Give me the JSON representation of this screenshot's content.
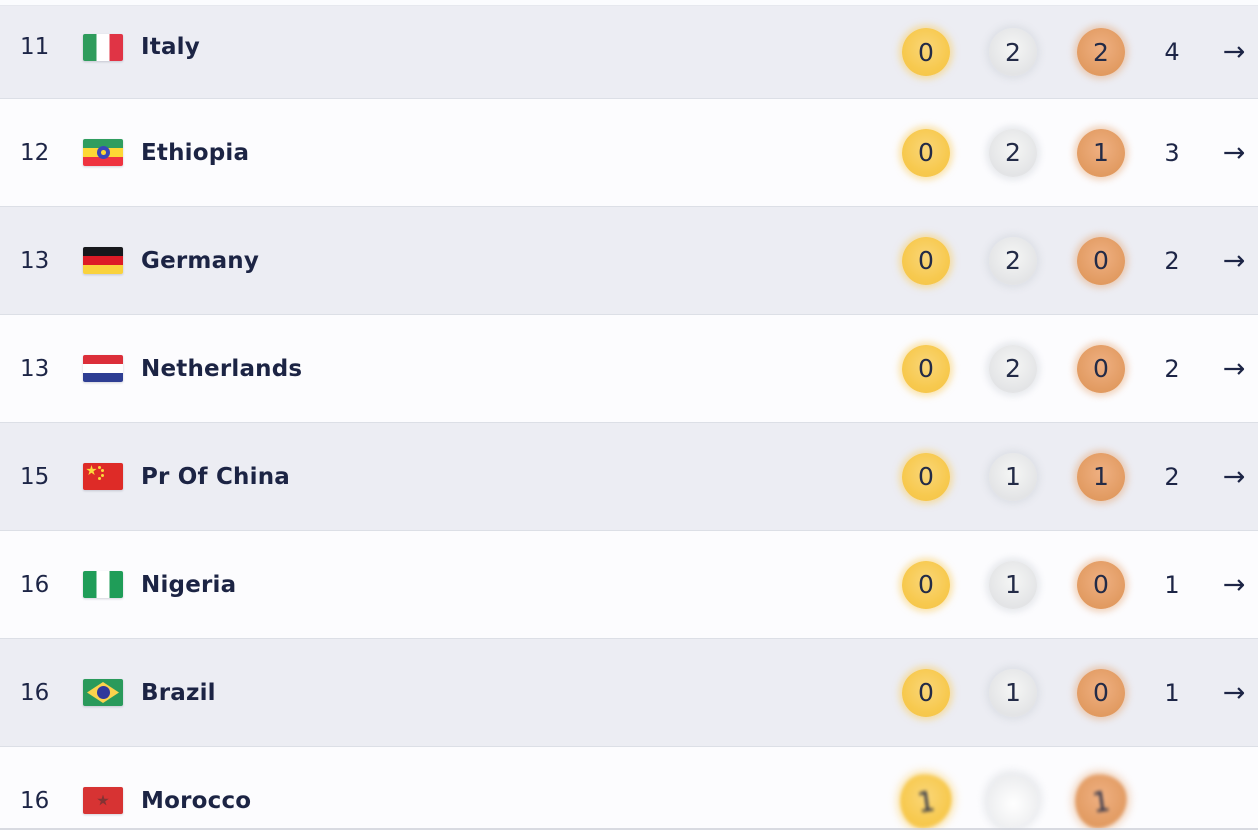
{
  "table": {
    "rows": [
      {
        "rank": "11",
        "country": "Italy",
        "flag": "italy",
        "gold": "0",
        "silver": "2",
        "bronze": "2",
        "total": "4",
        "arrow": "→"
      },
      {
        "rank": "12",
        "country": "Ethiopia",
        "flag": "ethiopia",
        "gold": "0",
        "silver": "2",
        "bronze": "1",
        "total": "3",
        "arrow": "→"
      },
      {
        "rank": "13",
        "country": "Germany",
        "flag": "germany",
        "gold": "0",
        "silver": "2",
        "bronze": "0",
        "total": "2",
        "arrow": "→"
      },
      {
        "rank": "13",
        "country": "Netherlands",
        "flag": "netherlands",
        "gold": "0",
        "silver": "2",
        "bronze": "0",
        "total": "2",
        "arrow": "→"
      },
      {
        "rank": "15",
        "country": "Pr Of China",
        "flag": "china",
        "gold": "0",
        "silver": "1",
        "bronze": "1",
        "total": "2",
        "arrow": "→"
      },
      {
        "rank": "16",
        "country": "Nigeria",
        "flag": "nigeria",
        "gold": "0",
        "silver": "1",
        "bronze": "0",
        "total": "1",
        "arrow": "→"
      },
      {
        "rank": "16",
        "country": "Brazil",
        "flag": "brazil",
        "gold": "0",
        "silver": "1",
        "bronze": "0",
        "total": "1",
        "arrow": "→"
      },
      {
        "rank": "16",
        "country": "Morocco",
        "flag": "morocco",
        "gold": "1",
        "silver": "",
        "bronze": "1",
        "total": "",
        "arrow": "",
        "render_artifact": true
      }
    ]
  },
  "colors": {
    "medal_gold": "#f7c94e",
    "medal_silver": "#e3e4e6",
    "medal_bronze": "#e19a60",
    "row_stripe": "#ecedf3",
    "row_white": "#fcfcfe",
    "text_navy": "#1d2546"
  }
}
